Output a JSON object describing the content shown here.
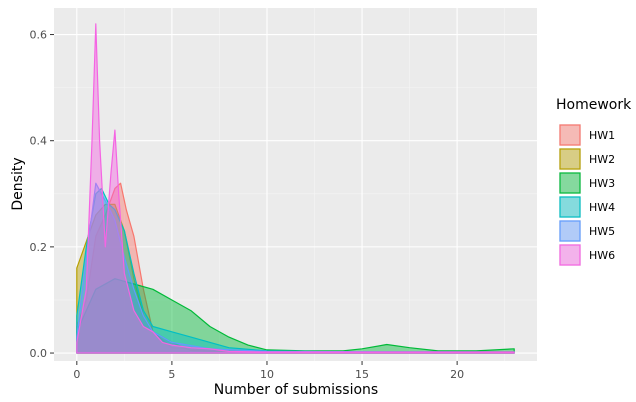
{
  "chart_data": {
    "type": "area",
    "xlabel": "Number of submissions",
    "ylabel": "Density",
    "xlim": [
      -1.2,
      24.2
    ],
    "ylim": [
      -0.015,
      0.65
    ],
    "x_ticks": [
      0,
      5,
      10,
      15,
      20
    ],
    "x_tick_labels": [
      "0",
      "5",
      "10",
      "15",
      "20"
    ],
    "y_ticks": [
      0.0,
      0.2,
      0.4,
      0.6
    ],
    "y_tick_labels": [
      "0.0",
      "0.2",
      "0.4",
      "0.6"
    ],
    "grid": true,
    "legend": {
      "title": "Homework",
      "placement": "right"
    },
    "series": [
      {
        "name": "HW1",
        "color": "#F8766D",
        "points": [
          [
            0,
            0.05
          ],
          [
            0.5,
            0.1
          ],
          [
            1,
            0.22
          ],
          [
            1.5,
            0.26
          ],
          [
            2,
            0.31
          ],
          [
            2.3,
            0.32
          ],
          [
            2.6,
            0.27
          ],
          [
            3,
            0.22
          ],
          [
            3.5,
            0.12
          ],
          [
            4,
            0.04
          ],
          [
            5,
            0.01
          ],
          [
            7,
            0.005
          ],
          [
            10,
            0.002
          ],
          [
            23,
            0.002
          ]
        ]
      },
      {
        "name": "HW2",
        "color": "#B79F00",
        "points": [
          [
            0,
            0.16
          ],
          [
            0.5,
            0.21
          ],
          [
            1,
            0.26
          ],
          [
            1.5,
            0.28
          ],
          [
            2,
            0.28
          ],
          [
            2.5,
            0.23
          ],
          [
            3,
            0.14
          ],
          [
            3.5,
            0.07
          ],
          [
            4,
            0.04
          ],
          [
            5,
            0.02
          ],
          [
            6,
            0.005
          ],
          [
            8,
            0.002
          ],
          [
            23,
            0.002
          ]
        ]
      },
      {
        "name": "HW3",
        "color": "#00BA38",
        "points": [
          [
            0,
            0.04
          ],
          [
            1,
            0.12
          ],
          [
            2,
            0.14
          ],
          [
            3,
            0.13
          ],
          [
            4,
            0.12
          ],
          [
            5,
            0.1
          ],
          [
            6,
            0.08
          ],
          [
            7,
            0.05
          ],
          [
            8,
            0.03
          ],
          [
            9,
            0.015
          ],
          [
            10,
            0.006
          ],
          [
            12,
            0.004
          ],
          [
            14,
            0.004
          ],
          [
            15,
            0.008
          ],
          [
            16.3,
            0.016
          ],
          [
            17.5,
            0.01
          ],
          [
            19,
            0.004
          ],
          [
            21,
            0.004
          ],
          [
            23,
            0.008
          ]
        ]
      },
      {
        "name": "HW4",
        "color": "#00BFC4",
        "points": [
          [
            0,
            0.07
          ],
          [
            0.5,
            0.2
          ],
          [
            1,
            0.3
          ],
          [
            1.3,
            0.31
          ],
          [
            1.7,
            0.28
          ],
          [
            2,
            0.27
          ],
          [
            2.5,
            0.23
          ],
          [
            3,
            0.15
          ],
          [
            3.5,
            0.08
          ],
          [
            4,
            0.05
          ],
          [
            5,
            0.04
          ],
          [
            6,
            0.03
          ],
          [
            8,
            0.01
          ],
          [
            10,
            0.004
          ],
          [
            14,
            0.002
          ],
          [
            23,
            0.002
          ]
        ]
      },
      {
        "name": "HW5",
        "color": "#619CFF",
        "points": [
          [
            0,
            0.03
          ],
          [
            0.4,
            0.15
          ],
          [
            1,
            0.32
          ],
          [
            1.3,
            0.3
          ],
          [
            1.6,
            0.28
          ],
          [
            2,
            0.25
          ],
          [
            2.5,
            0.18
          ],
          [
            3,
            0.12
          ],
          [
            3.5,
            0.07
          ],
          [
            4,
            0.04
          ],
          [
            5,
            0.02
          ],
          [
            7,
            0.008
          ],
          [
            10,
            0.003
          ],
          [
            23,
            0.002
          ]
        ]
      },
      {
        "name": "HW6",
        "color": "#F564E3",
        "points": [
          [
            0,
            0.02
          ],
          [
            0.5,
            0.12
          ],
          [
            0.8,
            0.4
          ],
          [
            1,
            0.62
          ],
          [
            1.2,
            0.4
          ],
          [
            1.5,
            0.2
          ],
          [
            1.8,
            0.34
          ],
          [
            2,
            0.42
          ],
          [
            2.2,
            0.3
          ],
          [
            2.5,
            0.15
          ],
          [
            3,
            0.08
          ],
          [
            3.5,
            0.05
          ],
          [
            4,
            0.04
          ],
          [
            4.5,
            0.02
          ],
          [
            5,
            0.015
          ],
          [
            6,
            0.01
          ],
          [
            7,
            0.008
          ],
          [
            8,
            0.003
          ],
          [
            10,
            0.002
          ],
          [
            23,
            0.002
          ]
        ]
      }
    ]
  }
}
